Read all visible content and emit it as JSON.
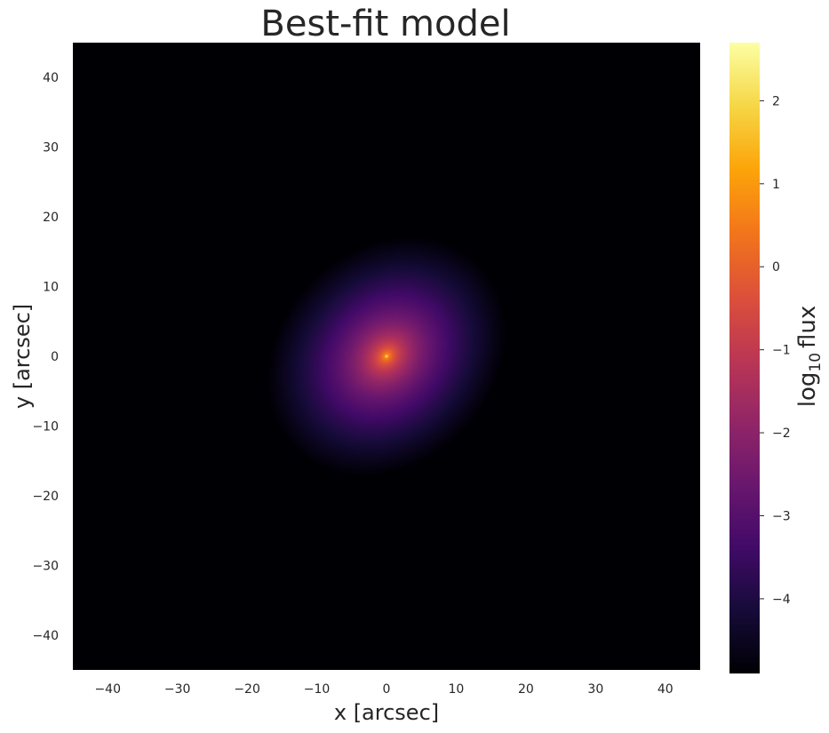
{
  "chart_data": {
    "type": "heatmap",
    "title": "Best-fit model",
    "xlabel": "x [arcsec]",
    "ylabel": "y [arcsec]",
    "xlim": [
      -45,
      45
    ],
    "ylim": [
      -45,
      45
    ],
    "xticks": [
      -40,
      -30,
      -20,
      -10,
      0,
      10,
      20,
      30,
      40
    ],
    "yticks": [
      -40,
      -30,
      -20,
      -10,
      0,
      10,
      20,
      30,
      40
    ],
    "grid": false,
    "colormap": "inferno",
    "colorbar": {
      "label_main": "log",
      "label_sub": "10",
      "label_tail": "flux",
      "range": [
        -4.9,
        2.7
      ],
      "ticks": [
        -4,
        -3,
        -2,
        -1,
        0,
        1,
        2
      ]
    },
    "model": {
      "center": [
        0,
        0
      ],
      "position_angle_deg": 45,
      "axis_ratio": 0.82,
      "peak_log_flux": 2.7,
      "min_log_flux": -4.9
    }
  }
}
